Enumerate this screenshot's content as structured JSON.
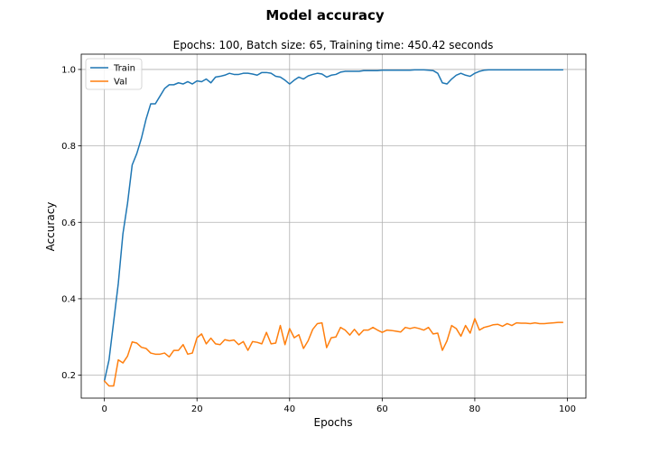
{
  "chart_data": {
    "type": "line",
    "title": "Model accuracy",
    "subtitle": "Epochs: 100, Batch size: 65, Training time: 450.42 seconds",
    "xlabel": "Epochs",
    "ylabel": "Accuracy",
    "xlim": [
      -5,
      104
    ],
    "ylim": [
      0.14,
      1.04
    ],
    "xticks": [
      0,
      20,
      40,
      60,
      80,
      100
    ],
    "yticks": [
      0.2,
      0.4,
      0.6,
      0.8,
      1.0
    ],
    "xtick_labels": [
      "0",
      "20",
      "40",
      "60",
      "80",
      "100"
    ],
    "ytick_labels": [
      "0.2",
      "0.4",
      "0.6",
      "0.8",
      "1.0"
    ],
    "grid": true,
    "legend_position": "upper-left",
    "series": [
      {
        "name": "Train",
        "color": "#1f77b4",
        "x": [
          0,
          1,
          2,
          3,
          4,
          5,
          6,
          7,
          8,
          9,
          10,
          11,
          12,
          13,
          14,
          15,
          16,
          17,
          18,
          19,
          20,
          21,
          22,
          23,
          24,
          25,
          26,
          27,
          28,
          29,
          30,
          31,
          32,
          33,
          34,
          35,
          36,
          37,
          38,
          39,
          40,
          41,
          42,
          43,
          44,
          45,
          46,
          47,
          48,
          49,
          50,
          51,
          52,
          53,
          54,
          55,
          56,
          57,
          58,
          59,
          60,
          61,
          62,
          63,
          64,
          65,
          66,
          67,
          68,
          69,
          70,
          71,
          72,
          73,
          74,
          75,
          76,
          77,
          78,
          79,
          80,
          81,
          82,
          83,
          84,
          85,
          86,
          87,
          88,
          89,
          90,
          91,
          92,
          93,
          94,
          95,
          96,
          97,
          98,
          99
        ],
        "values": [
          0.185,
          0.24,
          0.34,
          0.44,
          0.57,
          0.65,
          0.75,
          0.78,
          0.82,
          0.87,
          0.91,
          0.91,
          0.93,
          0.95,
          0.96,
          0.96,
          0.965,
          0.962,
          0.968,
          0.962,
          0.97,
          0.968,
          0.975,
          0.965,
          0.98,
          0.982,
          0.985,
          0.99,
          0.987,
          0.987,
          0.99,
          0.99,
          0.988,
          0.985,
          0.992,
          0.992,
          0.99,
          0.982,
          0.98,
          0.972,
          0.962,
          0.972,
          0.98,
          0.975,
          0.983,
          0.987,
          0.99,
          0.988,
          0.98,
          0.985,
          0.987,
          0.993,
          0.995,
          0.995,
          0.995,
          0.995,
          0.997,
          0.997,
          0.997,
          0.997,
          0.998,
          0.998,
          0.998,
          0.998,
          0.998,
          0.998,
          0.998,
          0.999,
          0.999,
          0.999,
          0.998,
          0.997,
          0.99,
          0.965,
          0.962,
          0.975,
          0.985,
          0.99,
          0.985,
          0.982,
          0.99,
          0.995,
          0.998,
          0.999,
          0.999,
          0.999,
          0.999,
          0.999,
          0.999,
          0.999,
          0.999,
          0.999,
          0.999,
          0.999,
          0.999,
          0.999,
          0.999,
          0.999,
          0.999,
          0.999
        ]
      },
      {
        "name": "Val",
        "color": "#ff7f0e",
        "x": [
          0,
          1,
          2,
          3,
          4,
          5,
          6,
          7,
          8,
          9,
          10,
          11,
          12,
          13,
          14,
          15,
          16,
          17,
          18,
          19,
          20,
          21,
          22,
          23,
          24,
          25,
          26,
          27,
          28,
          29,
          30,
          31,
          32,
          33,
          34,
          35,
          36,
          37,
          38,
          39,
          40,
          41,
          42,
          43,
          44,
          45,
          46,
          47,
          48,
          49,
          50,
          51,
          52,
          53,
          54,
          55,
          56,
          57,
          58,
          59,
          60,
          61,
          62,
          63,
          64,
          65,
          66,
          67,
          68,
          69,
          70,
          71,
          72,
          73,
          74,
          75,
          76,
          77,
          78,
          79,
          80,
          81,
          82,
          83,
          84,
          85,
          86,
          87,
          88,
          89,
          90,
          91,
          92,
          93,
          94,
          95,
          96,
          97,
          98,
          99
        ],
        "values": [
          0.185,
          0.172,
          0.172,
          0.24,
          0.232,
          0.25,
          0.287,
          0.284,
          0.273,
          0.27,
          0.258,
          0.255,
          0.255,
          0.258,
          0.248,
          0.265,
          0.265,
          0.28,
          0.255,
          0.258,
          0.298,
          0.308,
          0.282,
          0.297,
          0.282,
          0.28,
          0.293,
          0.29,
          0.292,
          0.28,
          0.288,
          0.265,
          0.288,
          0.286,
          0.282,
          0.312,
          0.282,
          0.284,
          0.33,
          0.28,
          0.322,
          0.298,
          0.306,
          0.27,
          0.29,
          0.32,
          0.335,
          0.337,
          0.272,
          0.298,
          0.3,
          0.325,
          0.318,
          0.305,
          0.32,
          0.305,
          0.318,
          0.318,
          0.325,
          0.318,
          0.312,
          0.318,
          0.317,
          0.315,
          0.313,
          0.325,
          0.322,
          0.325,
          0.322,
          0.318,
          0.325,
          0.308,
          0.31,
          0.265,
          0.29,
          0.33,
          0.322,
          0.302,
          0.33,
          0.31,
          0.348,
          0.318,
          0.325,
          0.328,
          0.332,
          0.333,
          0.328,
          0.335,
          0.33,
          0.337,
          0.336,
          0.336,
          0.335,
          0.337,
          0.335,
          0.335,
          0.336,
          0.337,
          0.338,
          0.338
        ]
      }
    ]
  }
}
